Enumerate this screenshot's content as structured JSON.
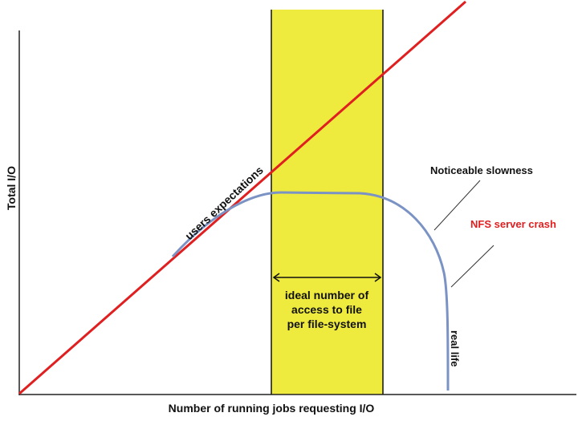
{
  "diagram": {
    "xlabel": "Number of running jobs requesting I/O",
    "ylabel": "Total I/O",
    "expectation_label": "users expectations",
    "ideal_range_label": [
      "ideal number of",
      "access to file",
      "per file-system"
    ],
    "real_life_label": "real life",
    "slowness_label": "Noticeable slowness",
    "crash_label": "NFS server crash",
    "colors": {
      "expectation_line": "#e02020",
      "real_life_curve": "#7b93c4",
      "ideal_band": "#eeea3e",
      "crash_text": "#e02020",
      "text": "#111111",
      "axis": "#222222"
    }
  }
}
